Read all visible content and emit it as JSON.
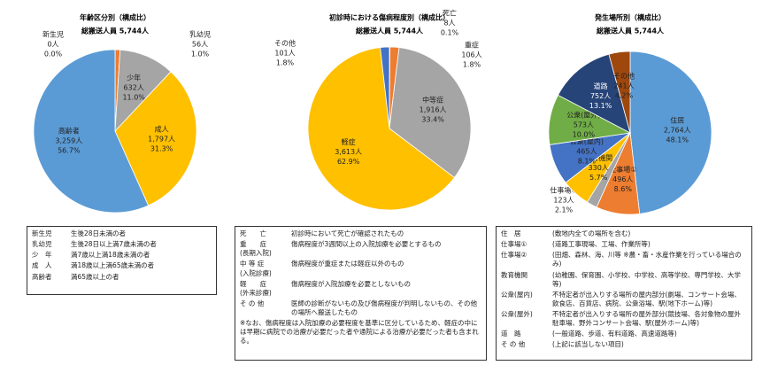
{
  "chart_data": [
    {
      "type": "pie",
      "title": "年齢区分別（構成比）",
      "subtitle": "総搬送人員 5,744人",
      "categories": [
        "新生児",
        "乳幼児",
        "少年",
        "成人",
        "高齢者"
      ],
      "values": [
        0.0,
        1.0,
        11.0,
        31.3,
        56.7
      ],
      "value_labels": [
        "0.0%",
        "1.0%",
        "11.0%",
        "31.3%",
        "56.7%"
      ],
      "count_labels": [
        "0人",
        "56人",
        "632人",
        "1,797人",
        "3,259人"
      ],
      "colors": [
        "#4472c4",
        "#ed7d31",
        "#a5a5a5",
        "#ffc000",
        "#5b9bd5"
      ]
    },
    {
      "type": "pie",
      "title": "初診時における傷病程度別（構成比）",
      "subtitle": "総搬送人員 5,744人",
      "categories": [
        "死亡",
        "重症",
        "中等症",
        "軽症",
        "その他"
      ],
      "values": [
        0.1,
        1.8,
        33.4,
        62.9,
        1.8
      ],
      "value_labels": [
        "0.1%",
        "1.8%",
        "33.4%",
        "62.9%",
        "1.8%"
      ],
      "count_labels": [
        "8人",
        "106人",
        "1,916人",
        "3,613人",
        "101人"
      ],
      "colors": [
        "#264478",
        "#ed7d31",
        "#a5a5a5",
        "#ffc000",
        "#4472c4"
      ]
    },
    {
      "type": "pie",
      "title": "発生場所別（構成比）",
      "subtitle": "総搬送人員 5,744人",
      "categories": [
        "住居",
        "仕事場①",
        "仕事場②",
        "教育機関",
        "公衆(屋内)",
        "公衆(屋外)",
        "道路",
        "その他"
      ],
      "values": [
        48.1,
        8.6,
        2.1,
        5.7,
        8.1,
        10.0,
        13.1,
        4.2
      ],
      "value_labels": [
        "48.1%",
        "8.6%",
        "2.1%",
        "5.7%",
        "8.1%",
        "10.0%",
        "13.1%",
        "4.2%"
      ],
      "count_labels": [
        "2,764人",
        "496人",
        "123人",
        "330人",
        "465人",
        "573人",
        "752人",
        "241人"
      ],
      "colors": [
        "#5b9bd5",
        "#ed7d31",
        "#a5a5a5",
        "#ffc000",
        "#4472c4",
        "#70ad47",
        "#264478",
        "#9e480e"
      ]
    }
  ],
  "definitions": [
    {
      "rows": [
        {
          "term": "新生児",
          "desc": "生後28日未満の者"
        },
        {
          "term": "乳幼児",
          "desc": "生後28日以上満7歳未満の者"
        },
        {
          "term": "少　年",
          "desc": "満7歳以上満18歳未満の者"
        },
        {
          "term": "成　人",
          "desc": "満18歳以上満65歳未満の者"
        },
        {
          "term": "高齢者",
          "desc": "満65歳以上の者"
        }
      ]
    },
    {
      "rows": [
        {
          "term": "死　　亡",
          "desc": "初診時において死亡が確認されたもの"
        },
        {
          "term": "重　　症",
          "sub": "(長期入院)",
          "desc": "傷病程度が3週間以上の入院加療を必要とするもの"
        },
        {
          "term": "中 等 症",
          "sub": "(入院診療)",
          "desc": "傷病程度が重症または軽症以外のもの"
        },
        {
          "term": "軽　　症",
          "sub": "(外来診療)",
          "desc": "傷病程度が入院加療を必要としないもの"
        },
        {
          "term": "そ の 他",
          "desc": "医師の診断がないもの及び傷病程度が判明しないもの、その他の場所へ搬送したもの"
        }
      ],
      "note": "※なお、傷病程度は入院加療の必要程度を基準に区分しているため、軽症の中には早期に病院での治療が必要だった者や通院による治療が必要だった者も含まれる。"
    },
    {
      "rows": [
        {
          "term": "住　居",
          "desc": "(敷地内全ての場所を含む)"
        },
        {
          "term": "仕事場①",
          "desc": "(道路工事現場、工場、作業所等)"
        },
        {
          "term": "仕事場②",
          "desc": "(田畑、森林、海、川等 ※農・畜・水産作業を行っている場合のみ)"
        },
        {
          "term": "教育機関",
          "desc": "(幼稚園、保育園、小学校、中学校、高等学校、専門学校、大学等)"
        },
        {
          "term": "公衆(屋内)",
          "desc": "不特定者が出入りする場所の屋内部分(劇場、コンサート会場、飲食店、百貨店、病院、公衆浴場、駅(地下ホーム)等)"
        },
        {
          "term": "公衆(屋外)",
          "desc": "不特定者が出入りする場所の屋外部分(競技場、各対象物の屋外駐車場、野外コンサート会場、駅(屋外ホーム)等)"
        },
        {
          "term": "道　路",
          "desc": "(一般道路、歩道、有料道路、高速道路等)"
        },
        {
          "term": "そ の 他",
          "desc": "(上記に該当しない項目)"
        }
      ]
    }
  ]
}
